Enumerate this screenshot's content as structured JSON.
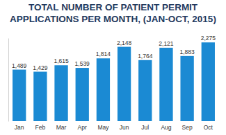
{
  "chart_data": {
    "type": "bar",
    "title": "TOTAL NUMBER OF PATIENT PERMIT APPLICATIONS PER MONTH, (JAN-OCT, 2015)",
    "categories": [
      "Jan",
      "Feb",
      "Mar",
      "Apr",
      "May",
      "Jun",
      "Jul",
      "Aug",
      "Sep",
      "Oct"
    ],
    "values": [
      1489,
      1429,
      1615,
      1539,
      1814,
      2148,
      1764,
      2121,
      1883,
      2275
    ],
    "value_labels": [
      "1,489",
      "1,429",
      "1,615",
      "1,539",
      "1,814",
      "2,148",
      "1,764",
      "2,121",
      "1,883",
      "2,275"
    ],
    "color": "#1b8ad3",
    "ylim": [
      0,
      2400
    ],
    "data_labels": true,
    "tick_labels": "x"
  }
}
